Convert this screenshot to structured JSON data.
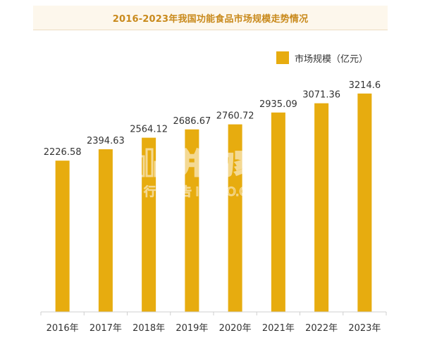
{
  "chart_data": {
    "type": "bar",
    "title": "2016-2023年我国功能食品市场规模走势情况",
    "categories": [
      "2016年",
      "2017年",
      "2018年",
      "2019年",
      "2020年",
      "2021年",
      "2022年",
      "2023年"
    ],
    "series": [
      {
        "name": "市场规模（亿元）",
        "values": [
          2226.58,
          2394.63,
          2564.12,
          2686.67,
          2760.72,
          2935.09,
          3071.36,
          3214.6
        ],
        "labels": [
          "2226.58",
          "2394.63",
          "2564.12",
          "2686.67",
          "2760.72",
          "2935.09",
          "3071.36",
          "3214.6"
        ]
      }
    ],
    "ylim": [
      0,
      3700
    ],
    "grid": false,
    "legend_position": "top-right",
    "bar_color": "#e7ac0f"
  },
  "watermark": {
    "main": "并购家",
    "sub": "行业报告 IPOIPO.CN"
  }
}
